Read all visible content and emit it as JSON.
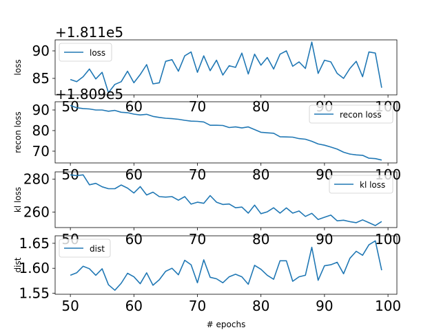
{
  "chart_data": [
    {
      "type": "line",
      "offset_label": "+1.811e5",
      "ylabel": "loss",
      "xlim": [
        47.6,
        101.4
      ],
      "ylim": [
        82.0,
        92.0
      ],
      "yticks": [
        85,
        90
      ],
      "xticks": [
        50,
        60,
        70,
        80,
        90,
        100
      ],
      "legend": "upper left",
      "series": [
        {
          "name": "loss",
          "color": "#1f77b4",
          "x": [
            50,
            51,
            52,
            53,
            54,
            55,
            56,
            57,
            58,
            59,
            60,
            61,
            62,
            63,
            64,
            65,
            66,
            67,
            68,
            69,
            70,
            71,
            72,
            73,
            74,
            75,
            76,
            77,
            78,
            79,
            80,
            81,
            82,
            83,
            84,
            85,
            86,
            87,
            88,
            89,
            90,
            91,
            92,
            93,
            94,
            95,
            96,
            97,
            98,
            99
          ],
          "values": [
            84.8,
            84.4,
            85.3,
            86.7,
            84.9,
            86.1,
            82.4,
            83.9,
            84.4,
            86.3,
            84.2,
            85.7,
            87.5,
            84.0,
            84.2,
            88.1,
            88.4,
            86.3,
            89.1,
            89.8,
            86.1,
            89.1,
            86.4,
            88.3,
            85.6,
            87.3,
            87.0,
            89.6,
            85.8,
            89.4,
            87.4,
            88.8,
            86.7,
            89.4,
            90.0,
            87.2,
            88.0,
            86.8,
            91.6,
            85.9,
            88.3,
            88.0,
            85.9,
            85.0,
            86.8,
            88.1,
            85.3,
            89.8,
            89.6,
            83.3
          ]
        }
      ]
    },
    {
      "type": "line",
      "offset_label": "+1.809e5",
      "ylabel": "recon loss",
      "xlim": [
        47.6,
        101.4
      ],
      "ylim": [
        64.3,
        94.0
      ],
      "yticks": [
        70,
        80,
        90
      ],
      "xticks": [
        50,
        60,
        70,
        80,
        90,
        100
      ],
      "legend": "upper right",
      "series": [
        {
          "name": "recon loss",
          "color": "#1f77b4",
          "x": [
            50,
            51,
            52,
            53,
            54,
            55,
            56,
            57,
            58,
            59,
            60,
            61,
            62,
            63,
            64,
            65,
            66,
            67,
            68,
            69,
            70,
            71,
            72,
            73,
            74,
            75,
            76,
            77,
            78,
            79,
            80,
            81,
            82,
            83,
            84,
            85,
            86,
            87,
            88,
            89,
            90,
            91,
            92,
            93,
            94,
            95,
            96,
            97,
            98,
            99
          ],
          "values": [
            92.2,
            91.1,
            90.7,
            90.5,
            90.0,
            90.0,
            89.4,
            89.8,
            88.9,
            88.7,
            88.0,
            87.6,
            87.9,
            86.9,
            86.4,
            86.0,
            85.8,
            85.5,
            85.0,
            84.6,
            84.5,
            84.2,
            82.6,
            82.6,
            82.5,
            81.5,
            81.8,
            81.3,
            81.8,
            80.5,
            79.2,
            78.9,
            78.7,
            77.0,
            76.9,
            76.8,
            76.1,
            75.8,
            74.8,
            73.5,
            72.9,
            72.0,
            71.0,
            69.5,
            68.6,
            68.2,
            68.0,
            66.6,
            66.4,
            65.7
          ]
        }
      ]
    },
    {
      "type": "line",
      "offset_label": "",
      "ylabel": "kl loss",
      "xlim": [
        47.6,
        101.4
      ],
      "ylim": [
        250.5,
        284.5
      ],
      "yticks": [
        260,
        280
      ],
      "xticks": [
        50,
        60,
        70,
        80,
        90,
        100
      ],
      "legend": "upper right",
      "series": [
        {
          "name": "kl loss",
          "color": "#1f77b4",
          "x": [
            50,
            51,
            52,
            53,
            54,
            55,
            56,
            57,
            58,
            59,
            60,
            61,
            62,
            63,
            64,
            65,
            66,
            67,
            68,
            69,
            70,
            71,
            72,
            73,
            74,
            75,
            76,
            77,
            78,
            79,
            80,
            81,
            82,
            83,
            84,
            85,
            86,
            87,
            88,
            89,
            90,
            91,
            92,
            93,
            94,
            95,
            96,
            97,
            98,
            99
          ],
          "values": [
            282.7,
            282.2,
            282.7,
            276.6,
            277.5,
            275.4,
            274.2,
            274.2,
            276.5,
            274.6,
            271.6,
            275.5,
            270.4,
            272.1,
            269.4,
            269.1,
            269.4,
            267.2,
            269.4,
            264.8,
            266.0,
            265.3,
            270.0,
            266.0,
            264.6,
            264.9,
            262.6,
            263.0,
            259.3,
            264.2,
            259.0,
            260.1,
            262.6,
            259.3,
            262.5,
            259.3,
            260.6,
            257.3,
            259.2,
            255.4,
            256.8,
            258.1,
            254.6,
            255.0,
            254.1,
            253.5,
            255.2,
            253.5,
            251.7,
            254.2
          ]
        }
      ]
    },
    {
      "type": "line",
      "offset_label": "",
      "ylabel": "dist",
      "xlim": [
        47.6,
        101.4
      ],
      "ylim": [
        1.548,
        1.665
      ],
      "yticks": [
        1.55,
        1.6,
        1.65
      ],
      "ytick_labels": [
        "1.55",
        "1.60",
        "1.65"
      ],
      "xticks": [
        50,
        60,
        70,
        80,
        90,
        100
      ],
      "xlabel": "# epochs",
      "legend": "upper left",
      "series": [
        {
          "name": "dist",
          "color": "#1f77b4",
          "x": [
            50,
            51,
            52,
            53,
            54,
            55,
            56,
            57,
            58,
            59,
            60,
            61,
            62,
            63,
            64,
            65,
            66,
            67,
            68,
            69,
            70,
            71,
            72,
            73,
            74,
            75,
            76,
            77,
            78,
            79,
            80,
            81,
            82,
            83,
            84,
            85,
            86,
            87,
            88,
            89,
            90,
            91,
            92,
            93,
            94,
            95,
            96,
            97,
            98,
            99
          ],
          "values": [
            1.586,
            1.591,
            1.604,
            1.599,
            1.586,
            1.599,
            1.567,
            1.556,
            1.57,
            1.59,
            1.583,
            1.569,
            1.591,
            1.566,
            1.577,
            1.594,
            1.6,
            1.587,
            1.616,
            1.607,
            1.571,
            1.617,
            1.582,
            1.579,
            1.571,
            1.583,
            1.588,
            1.583,
            1.568,
            1.606,
            1.598,
            1.586,
            1.578,
            1.615,
            1.615,
            1.574,
            1.583,
            1.586,
            1.642,
            1.576,
            1.605,
            1.607,
            1.612,
            1.589,
            1.62,
            1.634,
            1.626,
            1.647,
            1.655,
            1.596
          ]
        }
      ]
    }
  ]
}
